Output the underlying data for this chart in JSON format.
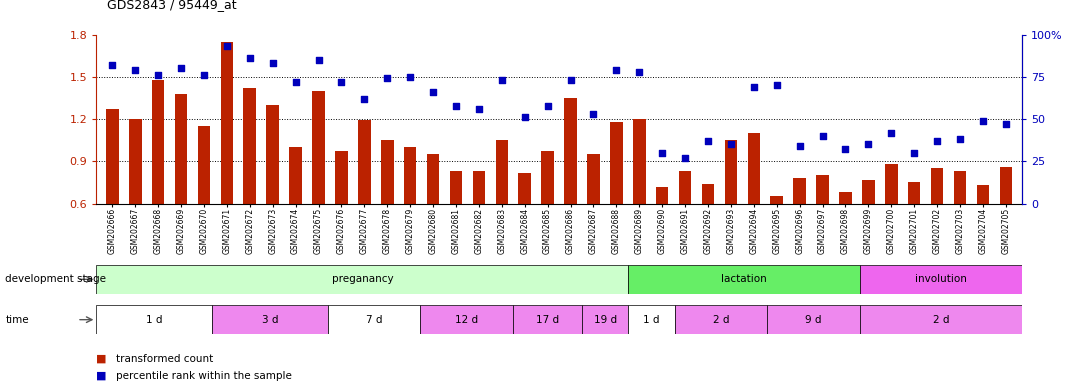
{
  "title": "GDS2843 / 95449_at",
  "samples": [
    "GSM202666",
    "GSM202667",
    "GSM202668",
    "GSM202669",
    "GSM202670",
    "GSM202671",
    "GSM202672",
    "GSM202673",
    "GSM202674",
    "GSM202675",
    "GSM202676",
    "GSM202677",
    "GSM202678",
    "GSM202679",
    "GSM202680",
    "GSM202681",
    "GSM202682",
    "GSM202683",
    "GSM202684",
    "GSM202685",
    "GSM202686",
    "GSM202687",
    "GSM202688",
    "GSM202689",
    "GSM202690",
    "GSM202691",
    "GSM202692",
    "GSM202693",
    "GSM202694",
    "GSM202695",
    "GSM202696",
    "GSM202697",
    "GSM202698",
    "GSM202699",
    "GSM202700",
    "GSM202701",
    "GSM202702",
    "GSM202703",
    "GSM202704",
    "GSM202705"
  ],
  "bar_values": [
    1.27,
    1.2,
    1.48,
    1.38,
    1.15,
    1.75,
    1.42,
    1.3,
    1.0,
    1.4,
    0.97,
    1.19,
    1.05,
    1.0,
    0.95,
    0.83,
    0.83,
    1.05,
    0.82,
    0.97,
    1.35,
    0.95,
    1.18,
    1.2,
    0.72,
    0.83,
    0.74,
    1.05,
    1.1,
    0.65,
    0.78,
    0.8,
    0.68,
    0.77,
    0.88,
    0.75,
    0.85,
    0.83,
    0.73,
    0.86
  ],
  "scatter_values": [
    82,
    79,
    76,
    80,
    76,
    93,
    86,
    83,
    72,
    85,
    72,
    62,
    74,
    75,
    66,
    58,
    56,
    73,
    51,
    58,
    73,
    53,
    79,
    78,
    30,
    27,
    37,
    35,
    69,
    70,
    34,
    40,
    32,
    35,
    42,
    30,
    37,
    38,
    49,
    47
  ],
  "bar_color": "#bb2200",
  "scatter_color": "#0000bb",
  "ylim_left": [
    0.6,
    1.8
  ],
  "ylim_right": [
    0,
    100
  ],
  "yticks_left": [
    0.6,
    0.9,
    1.2,
    1.5,
    1.8
  ],
  "yticks_right": [
    0,
    25,
    50,
    75,
    100
  ],
  "ytick_labels_right": [
    "0",
    "25",
    "50",
    "75",
    "100%"
  ],
  "grid_values": [
    0.9,
    1.2,
    1.5
  ],
  "stage_groups": [
    {
      "label": "preganancy",
      "start": 0,
      "end": 23,
      "color": "#ccffcc"
    },
    {
      "label": "lactation",
      "start": 23,
      "end": 33,
      "color": "#66ee66"
    },
    {
      "label": "involution",
      "start": 33,
      "end": 40,
      "color": "#ee66ee"
    }
  ],
  "time_groups": [
    {
      "label": "1 d",
      "start": 0,
      "end": 5,
      "color": "#ffffff"
    },
    {
      "label": "3 d",
      "start": 5,
      "end": 10,
      "color": "#ee88ee"
    },
    {
      "label": "7 d",
      "start": 10,
      "end": 14,
      "color": "#ffffff"
    },
    {
      "label": "12 d",
      "start": 14,
      "end": 18,
      "color": "#ee88ee"
    },
    {
      "label": "17 d",
      "start": 18,
      "end": 21,
      "color": "#ee88ee"
    },
    {
      "label": "19 d",
      "start": 21,
      "end": 23,
      "color": "#ee88ee"
    },
    {
      "label": "1 d",
      "start": 23,
      "end": 25,
      "color": "#ffffff"
    },
    {
      "label": "2 d",
      "start": 25,
      "end": 29,
      "color": "#ee88ee"
    },
    {
      "label": "9 d",
      "start": 29,
      "end": 33,
      "color": "#ee88ee"
    },
    {
      "label": "2 d",
      "start": 33,
      "end": 40,
      "color": "#ee88ee"
    }
  ],
  "legend_bar_label": "transformed count",
  "legend_scatter_label": "percentile rank within the sample",
  "stage_row_label": "development stage",
  "time_row_label": "time"
}
